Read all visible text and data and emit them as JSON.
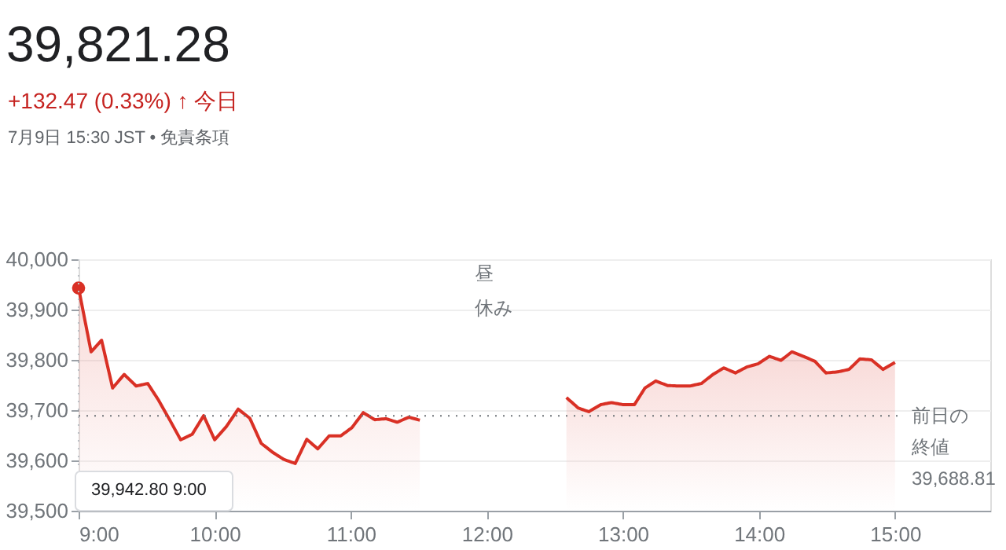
{
  "chart_data": {
    "type": "area",
    "title": "39,821.28",
    "subtitle": "+132.47 (0.33%) ↑ 今日",
    "annotations": [
      "昼休み",
      "7月9日 15:30 JST • 免責条項",
      "39,942.80  9:00"
    ],
    "xlim": [
      9,
      15.7
    ],
    "xticks": [
      {
        "value": 9,
        "label": "9:00"
      },
      {
        "value": 10,
        "label": "10:00"
      },
      {
        "value": 11,
        "label": "11:00"
      },
      {
        "value": 12,
        "label": "12:00"
      },
      {
        "value": 13,
        "label": "13:00"
      },
      {
        "value": 14,
        "label": "14:00"
      },
      {
        "value": 15,
        "label": "15:00"
      }
    ],
    "ylim": [
      39500,
      40000
    ],
    "yticks": [
      {
        "value": 39500,
        "label": "39,500"
      },
      {
        "value": 39600,
        "label": "39,600"
      },
      {
        "value": 39700,
        "label": "39,700"
      },
      {
        "value": 39800,
        "label": "39,800"
      },
      {
        "value": 39900,
        "label": "39,900"
      },
      {
        "value": 40000,
        "label": "40,000"
      }
    ],
    "grid": "y",
    "ref_lines": [
      {
        "axis": "y",
        "value": 39688.81,
        "label": "前日の終値39,688.81",
        "color": "#70757a",
        "line_style": "dotted"
      },
      {
        "axis": "x",
        "value": 9,
        "color": "#bdc1c6",
        "line_style": "dotted"
      }
    ],
    "series": [
      {
        "color": "#d93025",
        "x": [
          9.0,
          9.092,
          9.169,
          9.25,
          9.335,
          9.423,
          9.508,
          9.585,
          9.669,
          9.75,
          9.835,
          9.919,
          10.0,
          10.085,
          10.173,
          10.258,
          10.342,
          10.427,
          10.508,
          10.592,
          10.677,
          10.758,
          10.842,
          10.927,
          11.008,
          11.092,
          11.177,
          11.258,
          11.342,
          11.427,
          11.508,
          12.0,
          12.585,
          12.673,
          12.75,
          12.838,
          12.915,
          13.0,
          13.085,
          13.162,
          13.242,
          13.327,
          13.412,
          13.492,
          13.577,
          13.662,
          13.742,
          13.827,
          13.912,
          13.992,
          14.077,
          14.162,
          14.242,
          14.327,
          14.412,
          14.492,
          14.577,
          14.662,
          14.742,
          14.827,
          14.912,
          15.0
        ],
        "values": [
          39942.8,
          39816,
          39839,
          39744,
          39771,
          39748,
          39753,
          39721,
          39681,
          39641,
          39652,
          39689,
          39641,
          39667,
          39702,
          39684,
          39634,
          39616,
          39602,
          39594,
          39642,
          39623,
          39649,
          39649,
          39665,
          39695,
          39681,
          39683,
          39676,
          39686,
          39680,
          null,
          39725,
          39704,
          39697,
          39711,
          39715,
          39711,
          39711,
          39744,
          39758,
          39749,
          39748,
          39748,
          39753,
          39771,
          39784,
          39774,
          39786,
          39792,
          39807,
          39799,
          39816,
          39807,
          39797,
          39774,
          39776,
          39781,
          39802,
          39800,
          39781,
          39795
        ]
      },
      {
        "type": "scatter",
        "color": "#d93025",
        "marker": "circle",
        "x": [
          9.0
        ],
        "values": [
          39942.8
        ]
      }
    ]
  }
}
